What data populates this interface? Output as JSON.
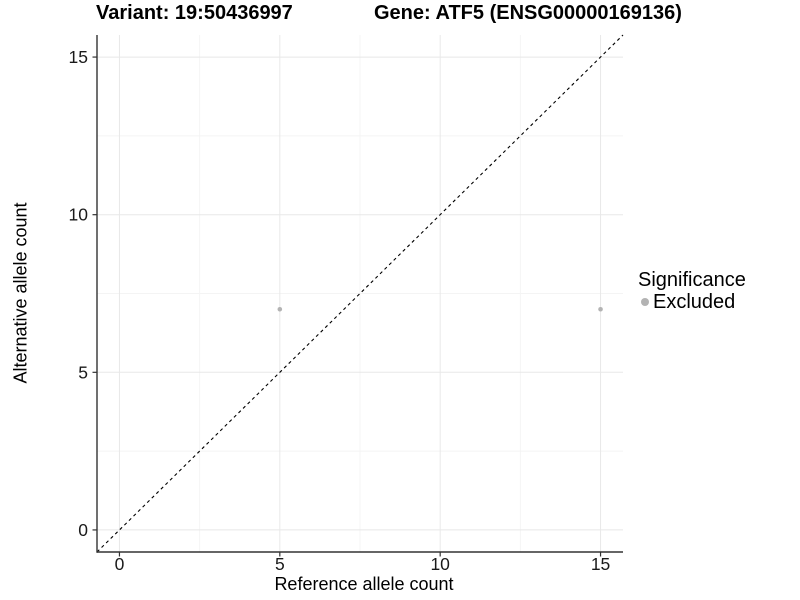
{
  "chart_data": {
    "type": "scatter",
    "title_left": "Variant: 19:50436997",
    "title_right": "Gene: ATF5 (ENSG00000169136)",
    "xlabel": "Reference allele count",
    "ylabel": "Alternative allele count",
    "xlim": [
      -0.7,
      15.7
    ],
    "ylim": [
      -0.7,
      15.7
    ],
    "x_ticks": [
      0,
      5,
      10,
      15
    ],
    "y_ticks": [
      0,
      5,
      10,
      15
    ],
    "minor_ticks": [
      2.5,
      7.5,
      12.5
    ],
    "grid": "major+minor",
    "identity_line": {
      "style": "dashed",
      "color": "#000000",
      "from": [
        -0.7,
        -0.7
      ],
      "to": [
        15.7,
        15.7
      ]
    },
    "series": [
      {
        "name": "Excluded",
        "color": "#b3b3b3",
        "points": [
          [
            5,
            7
          ],
          [
            15,
            7
          ]
        ]
      }
    ],
    "legend": {
      "title": "Significance",
      "position": "right",
      "items": [
        {
          "label": "Excluded",
          "color": "#b3b3b3"
        }
      ]
    }
  },
  "colors": {
    "background": "#ffffff",
    "grid_major": "#e8e8e8",
    "grid_minor": "#f4f4f4",
    "axis_line": "#333333",
    "tick_label": "#1a1a1a",
    "title": "#000000",
    "point": "#b3b3b3"
  }
}
